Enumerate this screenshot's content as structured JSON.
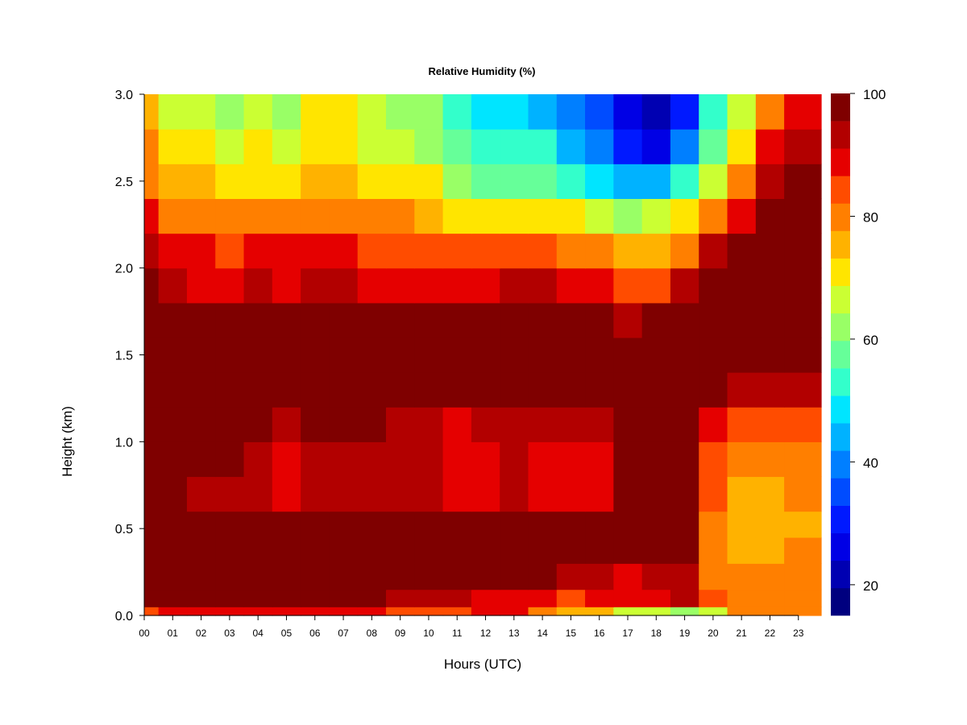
{
  "chart_data": {
    "type": "heatmap",
    "title": "Relative Humidity (%)",
    "xlabel": "Hours (UTC)",
    "ylabel": "Height (km)",
    "x_tick_labels": [
      "00",
      "01",
      "02",
      "03",
      "04",
      "05",
      "06",
      "07",
      "08",
      "09",
      "10",
      "11",
      "12",
      "13",
      "14",
      "15",
      "16",
      "17",
      "18",
      "19",
      "20",
      "21",
      "22",
      "23"
    ],
    "x_tick_values": [
      0,
      1,
      2,
      3,
      4,
      5,
      6,
      7,
      8,
      9,
      10,
      11,
      12,
      13,
      14,
      15,
      16,
      17,
      18,
      19,
      20,
      21,
      22,
      23
    ],
    "y_tick_labels": [
      "0.0",
      "0.5",
      "1.0",
      "1.5",
      "2.0",
      "2.5",
      "3.0"
    ],
    "y_tick_values": [
      0.0,
      0.5,
      1.0,
      1.5,
      2.0,
      2.5,
      3.0
    ],
    "xlim": [
      0,
      23.8
    ],
    "ylim": [
      0.0,
      3.0
    ],
    "colorbar": {
      "range": [
        15,
        100
      ],
      "tick_labels": [
        "20",
        "40",
        "60",
        "80",
        "100"
      ],
      "tick_values": [
        20,
        40,
        60,
        80,
        100
      ],
      "levels": [
        15,
        20,
        25,
        30,
        35,
        40,
        45,
        50,
        55,
        60,
        65,
        70,
        75,
        80,
        85,
        90,
        95,
        100
      ],
      "colors": [
        "#00007f",
        "#0000b2",
        "#0000e5",
        "#0019ff",
        "#004cff",
        "#007fff",
        "#00b2ff",
        "#00e5ff",
        "#33ffcb",
        "#66ff99",
        "#99ff66",
        "#cbff33",
        "#ffe500",
        "#ffb200",
        "#ff7f00",
        "#ff4c00",
        "#e50000",
        "#b20000",
        "#7f0000"
      ]
    },
    "grid_x_hours": [
      0,
      1,
      2,
      3,
      4,
      5,
      6,
      7,
      8,
      9,
      10,
      11,
      12,
      13,
      14,
      15,
      16,
      17,
      18,
      19,
      20,
      21,
      22,
      23
    ],
    "grid_heights_km": [
      0.0,
      0.1,
      0.2,
      0.4,
      0.5,
      0.7,
      0.9,
      1.1,
      1.3,
      1.5,
      1.7,
      1.9,
      2.1,
      2.3,
      2.5,
      2.7,
      2.9
    ],
    "values": [
      [
        88,
        92,
        92,
        93,
        92,
        90,
        92,
        93,
        92,
        88,
        86,
        88,
        91,
        90,
        82,
        78,
        76,
        68,
        65,
        62,
        68,
        80,
        82,
        84
      ],
      [
        100,
        100,
        100,
        100,
        100,
        100,
        100,
        100,
        100,
        98,
        95,
        95,
        92,
        92,
        90,
        88,
        92,
        90,
        92,
        95,
        85,
        82,
        82,
        84
      ],
      [
        100,
        100,
        100,
        100,
        100,
        100,
        100,
        100,
        100,
        100,
        100,
        100,
        100,
        100,
        100,
        98,
        96,
        94,
        96,
        96,
        84,
        80,
        80,
        82
      ],
      [
        100,
        100,
        100,
        100,
        100,
        100,
        100,
        100,
        100,
        100,
        100,
        100,
        100,
        100,
        100,
        100,
        100,
        100,
        100,
        100,
        82,
        78,
        78,
        80
      ],
      [
        100,
        100,
        100,
        100,
        100,
        100,
        100,
        100,
        100,
        100,
        100,
        100,
        100,
        100,
        100,
        100,
        100,
        100,
        100,
        100,
        84,
        76,
        76,
        78
      ],
      [
        100,
        100,
        98,
        98,
        98,
        92,
        98,
        98,
        96,
        96,
        96,
        94,
        94,
        96,
        94,
        92,
        92,
        100,
        100,
        100,
        86,
        78,
        78,
        80
      ],
      [
        100,
        100,
        100,
        100,
        98,
        92,
        98,
        98,
        95,
        95,
        95,
        92,
        94,
        95,
        94,
        92,
        92,
        100,
        100,
        100,
        88,
        80,
        80,
        82
      ],
      [
        100,
        100,
        100,
        100,
        100,
        96,
        100,
        100,
        100,
        98,
        98,
        94,
        96,
        98,
        98,
        98,
        98,
        100,
        100,
        100,
        90,
        88,
        88,
        88
      ],
      [
        100,
        100,
        100,
        100,
        100,
        100,
        100,
        100,
        100,
        100,
        100,
        100,
        100,
        100,
        100,
        100,
        100,
        100,
        100,
        100,
        100,
        96,
        96,
        96
      ],
      [
        100,
        100,
        100,
        100,
        100,
        100,
        100,
        100,
        100,
        100,
        100,
        100,
        100,
        100,
        100,
        100,
        100,
        100,
        100,
        100,
        100,
        100,
        100,
        100
      ],
      [
        100,
        100,
        100,
        100,
        100,
        100,
        100,
        100,
        100,
        100,
        100,
        100,
        100,
        100,
        100,
        100,
        100,
        96,
        100,
        100,
        100,
        100,
        100,
        100
      ],
      [
        100,
        96,
        94,
        93,
        95,
        93,
        96,
        96,
        94,
        94,
        94,
        94,
        92,
        96,
        95,
        93,
        92,
        86,
        88,
        95,
        100,
        100,
        100,
        100
      ],
      [
        98,
        92,
        90,
        88,
        90,
        90,
        92,
        92,
        88,
        88,
        88,
        86,
        88,
        88,
        86,
        84,
        82,
        75,
        78,
        84,
        95,
        100,
        100,
        100
      ],
      [
        90,
        84,
        82,
        80,
        82,
        80,
        82,
        84,
        80,
        80,
        78,
        72,
        72,
        74,
        72,
        70,
        66,
        64,
        66,
        70,
        84,
        92,
        100,
        100
      ],
      [
        84,
        76,
        76,
        72,
        74,
        72,
        76,
        78,
        74,
        72,
        70,
        60,
        56,
        58,
        56,
        52,
        46,
        40,
        42,
        50,
        66,
        80,
        96,
        100
      ],
      [
        80,
        70,
        70,
        68,
        70,
        68,
        72,
        72,
        68,
        66,
        64,
        56,
        52,
        52,
        50,
        44,
        38,
        28,
        24,
        36,
        56,
        72,
        90,
        96
      ],
      [
        78,
        68,
        68,
        64,
        66,
        62,
        70,
        70,
        66,
        62,
        60,
        52,
        48,
        48,
        44,
        38,
        30,
        20,
        16,
        26,
        50,
        66,
        84,
        94
      ]
    ]
  }
}
